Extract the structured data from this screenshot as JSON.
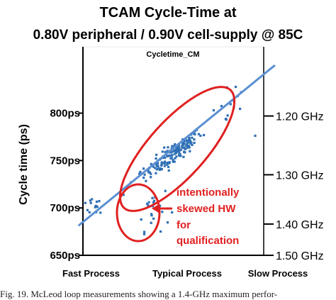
{
  "chart_data": {
    "type": "scatter",
    "title_line1": "TCAM Cycle-Time at",
    "title_line2": "0.80V peripheral / 0.90V cell-supply @ 85C",
    "subtitle": "Cycletime_CM",
    "ylabel": "Cycle time (ps)",
    "ylim": [
      650,
      870
    ],
    "y_ticks": [
      {
        "value": 650,
        "label": "650ps"
      },
      {
        "value": 700,
        "label": "700ps"
      },
      {
        "value": 750,
        "label": "750ps"
      },
      {
        "value": 800,
        "label": "800ps"
      }
    ],
    "right_ticks": [
      {
        "value": 650,
        "label": "1.50 GHz"
      },
      {
        "value": 683,
        "label": "1.40 GHz"
      },
      {
        "value": 735,
        "label": "1.30 GHz"
      },
      {
        "value": 797,
        "label": "1.20 GHz"
      }
    ],
    "x_categories": [
      {
        "label": "Fast Process",
        "x": 0
      },
      {
        "label": "Typical Process",
        "x": 0.5
      },
      {
        "label": "Slow Process",
        "x": 1
      }
    ],
    "xlim": [
      0,
      1
    ],
    "trend_line": {
      "x": [
        0,
        1
      ],
      "y": [
        690,
        836
      ]
    },
    "annotation": [
      "intentionally",
      "skewed HW",
      "for",
      "qualification"
    ],
    "colors": {
      "points": "#2f6fb5",
      "trend": "#5b8fd1",
      "ellipse": "#e02020",
      "annotation": "#e02020"
    },
    "clusters": [
      {
        "name_hint": "main",
        "cx": 0.5,
        "cy": 757,
        "n": 150,
        "sx": 0.085,
        "sy": 12
      },
      {
        "name_hint": "fast",
        "cx": 0.05,
        "cy": 703,
        "n": 14,
        "sx": 0.04,
        "sy": 6
      },
      {
        "name_hint": "skewed",
        "cx": 0.38,
        "cy": 700,
        "n": 26,
        "sx": 0.05,
        "sy": 12
      },
      {
        "name_hint": "slow",
        "cx": 0.82,
        "cy": 800,
        "n": 12,
        "sx": 0.06,
        "sy": 12
      }
    ],
    "outliers": [
      [
        0.25,
        727
      ],
      [
        0.3,
        736
      ],
      [
        0.88,
        818
      ],
      [
        0.9,
        822
      ],
      [
        0.62,
        779
      ],
      [
        0.58,
        771
      ]
    ]
  },
  "caption": "Fig. 19.    McLeod loop measurements showing a 1.4-GHz maximum perfor-"
}
